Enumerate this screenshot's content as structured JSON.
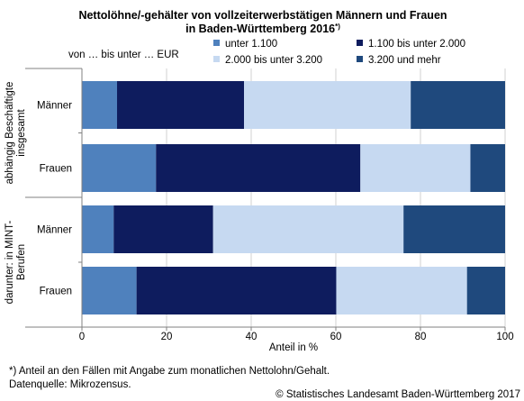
{
  "chart_data": {
    "type": "bar",
    "orientation": "horizontal",
    "stacked": true,
    "title": {
      "line1": "Nettolöhne/-gehälter von vollzeiterwerbstätigen Männern und Frauen",
      "line2": "in Baden-Württemberg 2016",
      "superscript": "*)"
    },
    "legend_caption": "von … bis unter … EUR",
    "legend_position": "top",
    "series": [
      {
        "name": "unter 1.100",
        "color": "#4f81bd"
      },
      {
        "name": "1.100 bis unter 2.000",
        "color": "#0e1c5e"
      },
      {
        "name": "2.000 bis unter 3.200",
        "color": "#c6d9f1"
      },
      {
        "name": "3.200 und mehr",
        "color": "#1f497d"
      }
    ],
    "groups": [
      {
        "label_lines": [
          "abhängig Beschäftigte",
          "insgesamt"
        ]
      },
      {
        "label_lines": [
          "darunter: in MINT-",
          "Berufen"
        ]
      }
    ],
    "bars": [
      {
        "group": 0,
        "category": "Männer",
        "values": [
          8.3,
          30.0,
          39.4,
          22.3
        ]
      },
      {
        "group": 0,
        "category": "Frauen",
        "values": [
          17.5,
          48.3,
          26.0,
          8.2
        ]
      },
      {
        "group": 1,
        "category": "Männer",
        "values": [
          7.5,
          23.5,
          45.0,
          24.0
        ]
      },
      {
        "group": 1,
        "category": "Frauen",
        "values": [
          12.9,
          47.2,
          30.9,
          9.0
        ]
      }
    ],
    "x_axis": {
      "label": "Anteil in %",
      "min": 0,
      "max": 100,
      "ticks": [
        "0",
        "20",
        "40",
        "60",
        "80",
        "100"
      ],
      "tick_values": [
        0,
        20,
        40,
        60,
        80,
        100
      ]
    },
    "gridlines": true,
    "footnotes": {
      "line1": "*) Anteil an den Fällen mit Angabe zum monatlichen Nettolohn/Gehalt.",
      "line2": "Datenquelle: Mikrozensus."
    },
    "copyright": "© Statistisches Landesamt Baden-Württemberg 2017"
  }
}
